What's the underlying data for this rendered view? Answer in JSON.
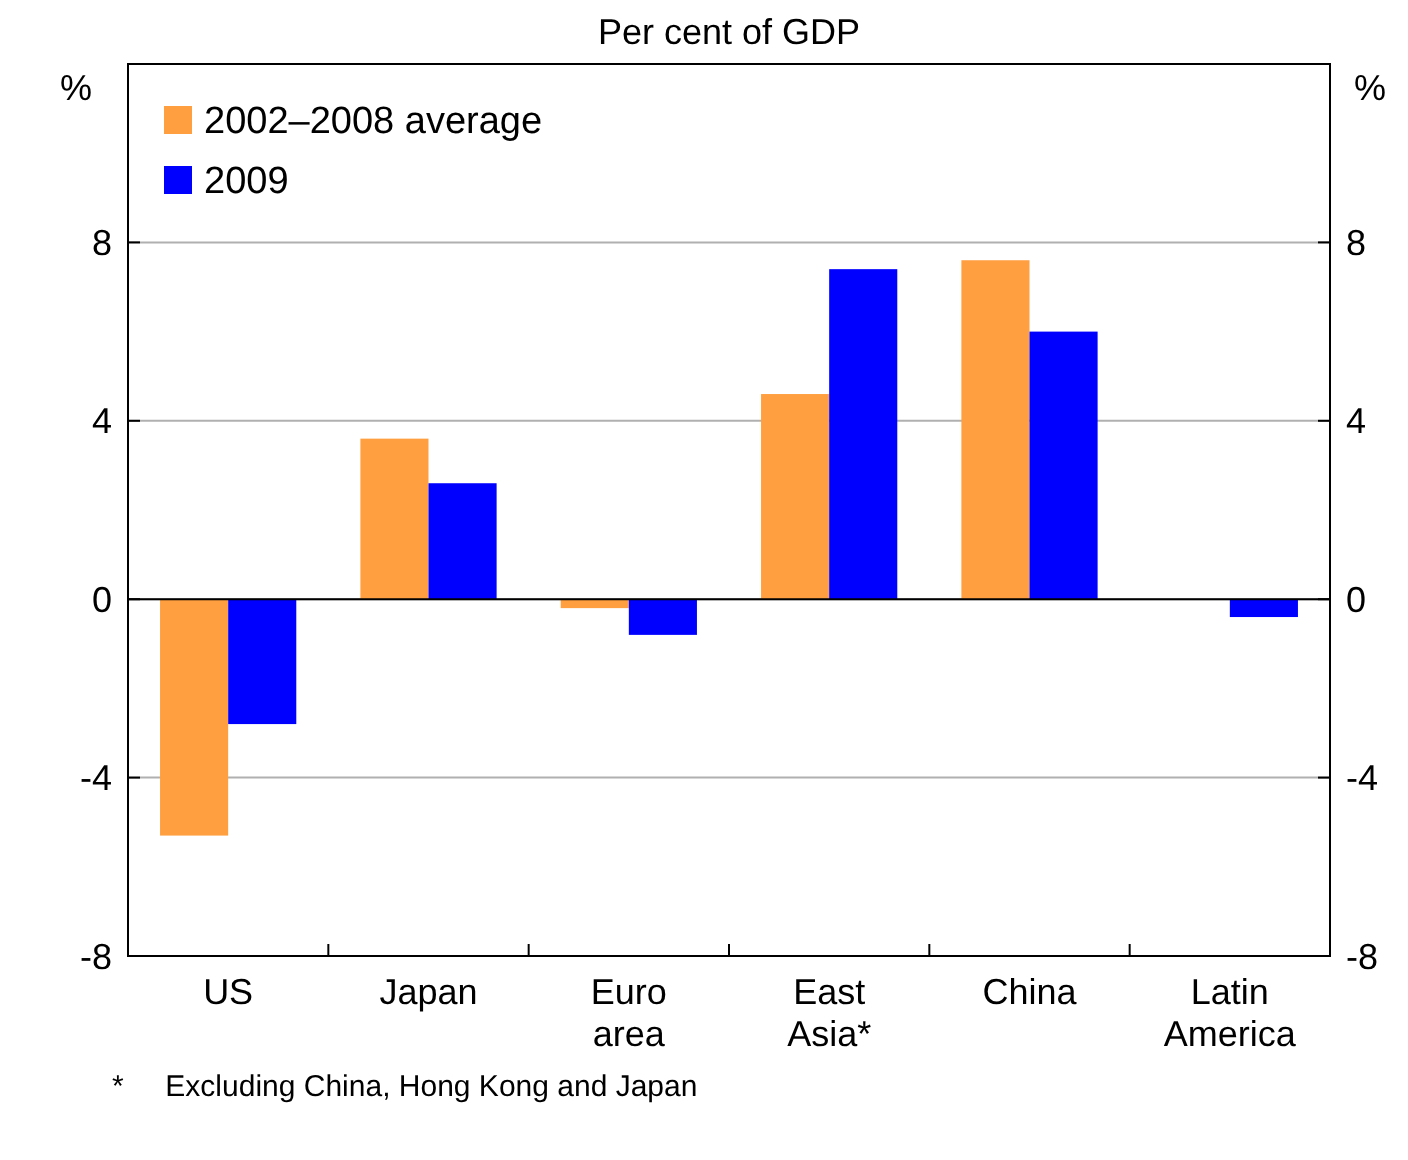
{
  "chart_data": {
    "type": "bar",
    "title": "Per cent of GDP",
    "ylabel": "%",
    "y2label": "%",
    "categories": [
      "US",
      "Japan",
      "Euro area",
      "East Asia*",
      "China",
      "Latin America"
    ],
    "series": [
      {
        "name": "2002–2008 average",
        "color": "#ff9f40",
        "values": [
          -5.3,
          3.6,
          -0.2,
          4.6,
          7.6,
          0
        ]
      },
      {
        "name": "2009",
        "color": "#0000ff",
        "values": [
          -2.8,
          2.6,
          -0.8,
          7.4,
          6.0,
          -0.4
        ]
      }
    ],
    "ylim": [
      -8,
      12
    ],
    "yticks": [
      -8,
      -4,
      0,
      4,
      8
    ],
    "y2lim": [
      -8,
      12
    ],
    "y2ticks": [
      -8,
      -4,
      0,
      4,
      8
    ],
    "grid": "y",
    "legend": "top left",
    "annotations": [
      "*     Excluding China, Hong Kong and Japan"
    ]
  }
}
